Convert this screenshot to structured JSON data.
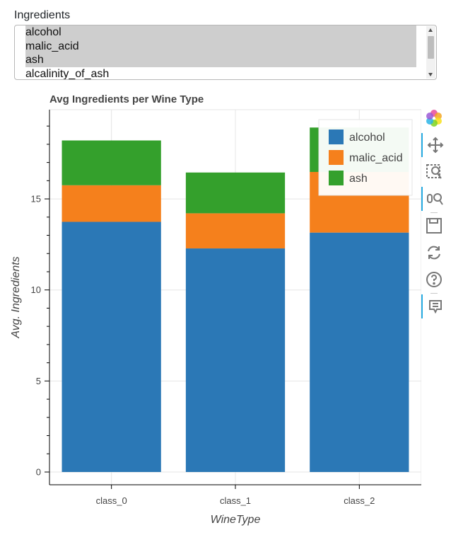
{
  "select": {
    "label": "Ingredients",
    "options": [
      {
        "label": "alcohol",
        "selected": true
      },
      {
        "label": "malic_acid",
        "selected": true
      },
      {
        "label": "ash",
        "selected": true
      },
      {
        "label": "alcalinity_of_ash",
        "selected": false
      }
    ]
  },
  "chart_data": {
    "type": "bar",
    "stacked": true,
    "title": "Avg Ingredients per Wine Type",
    "xlabel": "WineType",
    "ylabel": "Avg. Ingredients",
    "categories": [
      "class_0",
      "class_1",
      "class_2"
    ],
    "series": [
      {
        "name": "alcohol",
        "color": "#2b78b6",
        "values": [
          13.74,
          12.28,
          13.15
        ]
      },
      {
        "name": "malic_acid",
        "color": "#f5801c",
        "values": [
          2.01,
          1.93,
          3.33
        ]
      },
      {
        "name": "ash",
        "color": "#34a02c",
        "values": [
          2.46,
          2.24,
          2.44
        ]
      }
    ],
    "ylim": [
      -0.7,
      19.9
    ],
    "yticks": [
      0,
      5,
      10,
      15
    ],
    "grid": true,
    "legend": "top-right"
  },
  "toolbar": {
    "tools": [
      "bokeh-logo-icon",
      "pan-icon",
      "box-zoom-icon",
      "wheel-zoom-icon",
      "save-icon",
      "reset-icon",
      "help-icon",
      "hover-icon"
    ]
  }
}
